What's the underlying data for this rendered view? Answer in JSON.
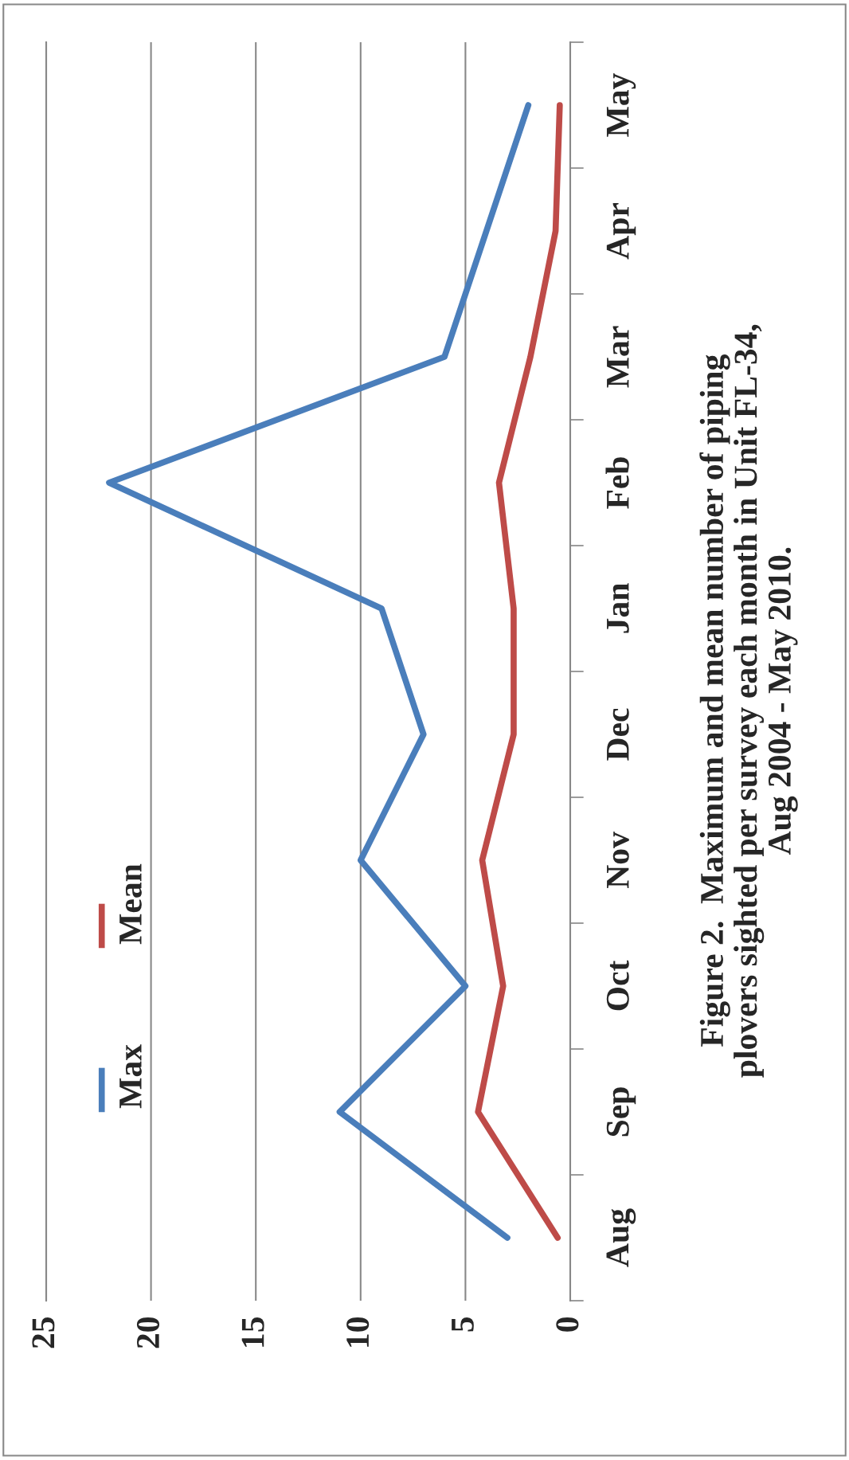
{
  "chart_data": {
    "type": "line",
    "orientation": "horizontal",
    "title": "Figure 2.  Maximum and mean number of piping\nplovers sighted per survey each month in Unit FL-34,\nAug 2004 - May 2010.",
    "categories": [
      "May",
      "Apr",
      "Mar",
      "Feb",
      "Jan",
      "Dec",
      "Nov",
      "Oct",
      "Sep",
      "Aug"
    ],
    "series": [
      {
        "name": "Max",
        "color": "#4a7ebb",
        "values": [
          2,
          4,
          6,
          22,
          9,
          7,
          10,
          5,
          11,
          3
        ]
      },
      {
        "name": "Mean",
        "color": "#be4b48",
        "values": [
          0.5,
          0.7,
          1.9,
          3.4,
          2.7,
          2.7,
          4.2,
          3.2,
          4.4,
          0.6
        ]
      }
    ],
    "xlim": [
      25,
      0
    ],
    "xticks": [
      25,
      20,
      15,
      10,
      5,
      0
    ],
    "grid": "x",
    "legend": "left"
  }
}
